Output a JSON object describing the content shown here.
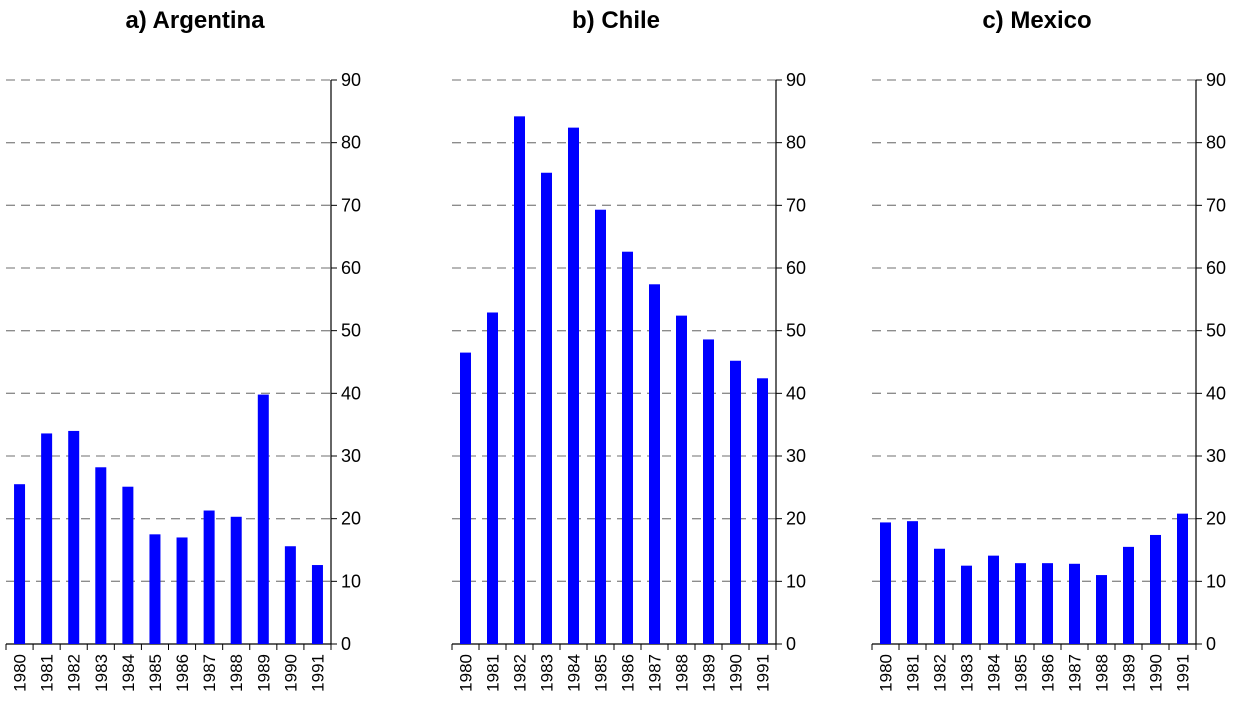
{
  "chart_data": [
    {
      "type": "bar",
      "title": "a) Argentina",
      "categories": [
        "1980",
        "1981",
        "1982",
        "1983",
        "1984",
        "1985",
        "1986",
        "1987",
        "1988",
        "1989",
        "1990",
        "1991"
      ],
      "values": [
        25.5,
        33.6,
        34.0,
        28.2,
        25.1,
        17.5,
        17.0,
        21.3,
        20.3,
        39.8,
        15.6,
        12.6
      ],
      "ylim": [
        0,
        90
      ],
      "yticks": [
        0,
        10,
        20,
        30,
        40,
        50,
        60,
        70,
        80,
        90
      ],
      "y_axis_side": "right",
      "grid": "horizontal dashed",
      "bar_color": "#0000ff"
    },
    {
      "type": "bar",
      "title": "b) Chile",
      "categories": [
        "1980",
        "1981",
        "1982",
        "1983",
        "1984",
        "1985",
        "1986",
        "1987",
        "1988",
        "1989",
        "1990",
        "1991"
      ],
      "values": [
        46.5,
        52.9,
        84.2,
        75.2,
        82.4,
        69.3,
        62.6,
        57.4,
        52.4,
        48.6,
        45.2,
        42.4
      ],
      "ylim": [
        0,
        90
      ],
      "yticks": [
        0,
        10,
        20,
        30,
        40,
        50,
        60,
        70,
        80,
        90
      ],
      "y_axis_side": "right",
      "grid": "horizontal dashed",
      "bar_color": "#0000ff"
    },
    {
      "type": "bar",
      "title": "c) Mexico",
      "categories": [
        "1980",
        "1981",
        "1982",
        "1983",
        "1984",
        "1985",
        "1986",
        "1987",
        "1988",
        "1989",
        "1990",
        "1991"
      ],
      "values": [
        19.4,
        19.6,
        15.2,
        12.5,
        14.1,
        12.9,
        12.9,
        12.8,
        11.0,
        15.5,
        17.4,
        20.8
      ],
      "ylim": [
        0,
        90
      ],
      "yticks": [
        0,
        10,
        20,
        30,
        40,
        50,
        60,
        70,
        80,
        90
      ],
      "y_axis_side": "right",
      "grid": "horizontal dashed",
      "bar_color": "#0000ff"
    }
  ]
}
